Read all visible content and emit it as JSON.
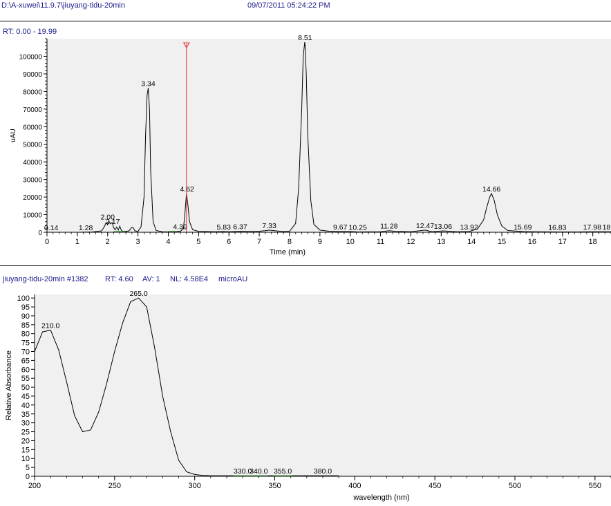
{
  "header": {
    "file_path": "D:\\A-xuwei\\11.9.7\\jiuyang-tidu-20min",
    "timestamp": "09/07/2011 05:24:22 PM",
    "rt_range": "RT: 0.00 - 19.99"
  },
  "spectrum_header": {
    "title": "jiuyang-tidu-20min #1382",
    "rt": "RT: 4.60",
    "av": "AV: 1",
    "nl": "NL: 4.58E4",
    "units": "microAU"
  },
  "colors": {
    "header_text": "#1a1a8c",
    "plot_bg": "#f0f0f0",
    "trace": "#000000",
    "cursor": "#e03030",
    "baseline": "#2e9a2e"
  },
  "chart_data": [
    {
      "type": "line",
      "xlabel": "Time (min)",
      "ylabel": "uAU",
      "xlim": [
        0,
        18.6
      ],
      "ylim": [
        0,
        110000
      ],
      "xticks": [
        0,
        1,
        2,
        3,
        4,
        5,
        6,
        7,
        8,
        9,
        10,
        11,
        12,
        13,
        14,
        15,
        16,
        17,
        18
      ],
      "yticks": [
        0,
        10000,
        20000,
        30000,
        40000,
        50000,
        60000,
        70000,
        80000,
        90000,
        100000
      ],
      "grid": false,
      "cursor_x": 4.6,
      "series": [
        {
          "x": [
            0.0,
            0.5,
            1.0,
            1.5,
            1.8,
            1.9,
            1.95,
            2.0,
            2.05,
            2.1,
            2.15,
            2.2,
            2.25,
            2.3,
            2.35,
            2.4,
            2.45,
            2.5,
            2.6,
            2.7,
            2.8,
            2.85,
            2.9,
            3.0,
            3.1,
            3.2,
            3.25,
            3.3,
            3.34,
            3.38,
            3.42,
            3.5,
            3.6,
            3.8,
            4.0,
            4.2,
            4.4,
            4.5,
            4.55,
            4.6,
            4.65,
            4.7,
            4.8,
            5.0,
            5.5,
            5.83,
            6.0,
            6.37,
            6.8,
            7.0,
            7.2,
            7.33,
            7.5,
            7.8,
            8.0,
            8.2,
            8.3,
            8.4,
            8.45,
            8.5,
            8.51,
            8.55,
            8.6,
            8.7,
            8.8,
            9.0,
            9.3,
            9.67,
            10.0,
            10.25,
            11.0,
            11.28,
            11.5,
            12.0,
            12.47,
            12.7,
            13.06,
            13.5,
            13.92,
            14.2,
            14.4,
            14.5,
            14.6,
            14.66,
            14.75,
            14.85,
            15.0,
            15.2,
            15.69,
            16.0,
            16.83,
            17.5,
            17.98,
            18.6
          ],
          "y": [
            0,
            0,
            0,
            200,
            800,
            3500,
            5500,
            4200,
            6000,
            4800,
            5500,
            2500,
            1500,
            3000,
            1200,
            3500,
            1200,
            500,
            500,
            800,
            2800,
            2500,
            800,
            500,
            3000,
            20000,
            55000,
            78000,
            82000,
            70000,
            35000,
            6000,
            1000,
            300,
            200,
            300,
            600,
            2000,
            11000,
            22000,
            15000,
            6000,
            1500,
            500,
            300,
            400,
            300,
            500,
            400,
            600,
            900,
            1200,
            900,
            400,
            600,
            5000,
            25000,
            70000,
            100000,
            108000,
            107000,
            90000,
            55000,
            18000,
            4500,
            1200,
            600,
            400,
            400,
            200,
            300,
            900,
            500,
            300,
            1200,
            300,
            800,
            300,
            400,
            2000,
            7000,
            14000,
            20000,
            22000,
            18000,
            10000,
            3500,
            1000,
            400,
            300,
            200,
            200,
            300,
            300
          ]
        }
      ],
      "peak_labels": [
        {
          "x": 0.14,
          "y": 0,
          "label": "0.14"
        },
        {
          "x": 1.28,
          "y": 0,
          "label": "1.28"
        },
        {
          "x": 2.0,
          "y": 6000,
          "label": "2.00"
        },
        {
          "x": 2.17,
          "y": 3500,
          "label": "2.17"
        },
        {
          "x": 3.34,
          "y": 82000,
          "label": "3.34"
        },
        {
          "x": 4.39,
          "y": 600,
          "label": "4.39"
        },
        {
          "x": 4.62,
          "y": 22000,
          "label": "4.62"
        },
        {
          "x": 5.83,
          "y": 400,
          "label": "5.83"
        },
        {
          "x": 6.37,
          "y": 500,
          "label": "6.37"
        },
        {
          "x": 7.33,
          "y": 1200,
          "label": "7.33"
        },
        {
          "x": 8.51,
          "y": 108000,
          "label": "8.51"
        },
        {
          "x": 9.67,
          "y": 400,
          "label": "9.67"
        },
        {
          "x": 10.25,
          "y": 200,
          "label": "10.25"
        },
        {
          "x": 11.28,
          "y": 900,
          "label": "11.28"
        },
        {
          "x": 12.47,
          "y": 1200,
          "label": "12.47"
        },
        {
          "x": 13.06,
          "y": 800,
          "label": "13.06"
        },
        {
          "x": 13.92,
          "y": 400,
          "label": "13.92"
        },
        {
          "x": 14.66,
          "y": 22000,
          "label": "14.66"
        },
        {
          "x": 15.69,
          "y": 300,
          "label": "15.69"
        },
        {
          "x": 16.83,
          "y": 200,
          "label": "16.83"
        },
        {
          "x": 17.98,
          "y": 300,
          "label": "17.98"
        },
        {
          "x": 18.45,
          "y": 300,
          "label": "18"
        }
      ]
    },
    {
      "type": "line",
      "xlabel": "wavelength (nm)",
      "ylabel": "Relative Absorbance",
      "xlim": [
        200,
        560
      ],
      "ylim": [
        0,
        102
      ],
      "xticks": [
        200,
        250,
        300,
        350,
        400,
        450,
        500,
        550
      ],
      "yticks": [
        0,
        5,
        10,
        15,
        20,
        25,
        30,
        35,
        40,
        45,
        50,
        55,
        60,
        65,
        70,
        75,
        80,
        85,
        90,
        95,
        100
      ],
      "grid": false,
      "series": [
        {
          "x": [
            200,
            205,
            210,
            215,
            220,
            225,
            230,
            235,
            240,
            245,
            250,
            255,
            260,
            265,
            270,
            275,
            280,
            285,
            290,
            295,
            300,
            305,
            310,
            320,
            330,
            340,
            350,
            355,
            360,
            370,
            380,
            390
          ],
          "y": [
            70,
            81,
            82,
            71,
            53,
            34,
            25,
            26,
            36,
            52,
            70,
            86,
            98,
            100,
            95,
            72,
            45,
            25,
            9,
            2.5,
            1,
            0.5,
            0.3,
            0.3,
            0.3,
            0.3,
            0.3,
            0.3,
            0.3,
            0.3,
            0.3,
            0.3
          ]
        }
      ],
      "peak_labels": [
        {
          "x": 210.0,
          "y": 82,
          "label": "210.0"
        },
        {
          "x": 265.0,
          "y": 100,
          "label": "265.0"
        },
        {
          "x": 330.0,
          "y": 0.3,
          "label": "330.0"
        },
        {
          "x": 340.0,
          "y": 0.3,
          "label": "340.0"
        },
        {
          "x": 355.0,
          "y": 0.3,
          "label": "355.0"
        },
        {
          "x": 380.0,
          "y": 0.3,
          "label": "380.0"
        }
      ]
    }
  ]
}
